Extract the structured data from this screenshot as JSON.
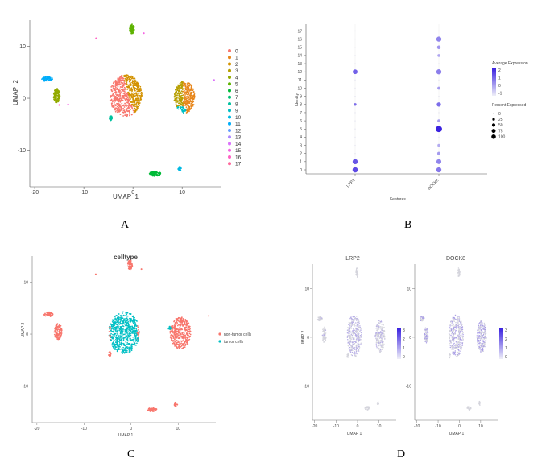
{
  "panels": {
    "A": {
      "letter": "A"
    },
    "B": {
      "letter": "B"
    },
    "C": {
      "letter": "C"
    },
    "D": {
      "letter": "D"
    }
  },
  "chart_data": [
    {
      "panel": "A",
      "type": "scatter",
      "title": "",
      "xlabel": "UMAP_1",
      "ylabel": "UMAP_2",
      "xticks": [
        "-20",
        "-10",
        "0",
        "10"
      ],
      "yticks": [
        "10",
        "0",
        "-10"
      ],
      "xlim": [
        -21,
        18
      ],
      "ylim": [
        -17,
        15
      ],
      "legend_labels": [
        "0",
        "1",
        "2",
        "3",
        "4",
        "5",
        "6",
        "7",
        "8",
        "9",
        "10",
        "11",
        "12",
        "13",
        "14",
        "15",
        "16",
        "17"
      ],
      "legend_colors": [
        "#F8766D",
        "#E7861B",
        "#D39200",
        "#B79F00",
        "#93AA00",
        "#5EB300",
        "#00BA38",
        "#00BF74",
        "#00C19F",
        "#00BFC4",
        "#00B9E3",
        "#00ADFA",
        "#619CFF",
        "#AE87FF",
        "#DB72FB",
        "#F564E3",
        "#FF61C3",
        "#FF699C"
      ],
      "clusters": [
        {
          "cluster": "0",
          "x": -1.8,
          "y": 0.5
        },
        {
          "cluster": "1",
          "x": 10.5,
          "y": 0.2
        },
        {
          "cluster": "2",
          "x": 0.8,
          "y": 1.5
        },
        {
          "cluster": "3",
          "x": -15.5,
          "y": 0.5
        },
        {
          "cluster": "4",
          "x": 10.2,
          "y": -2.5
        },
        {
          "cluster": "5",
          "x": -0.2,
          "y": 13.5
        },
        {
          "cluster": "6",
          "x": 4.5,
          "y": -14.5
        },
        {
          "cluster": "7",
          "x": -1.0,
          "y": -3.0
        },
        {
          "cluster": "8",
          "x": -4.5,
          "y": -4.0
        },
        {
          "cluster": "9",
          "x": 11.0,
          "y": -3.5
        },
        {
          "cluster": "10",
          "x": 9.5,
          "y": -13.5
        },
        {
          "cluster": "11",
          "x": -17.0,
          "y": 4.0
        },
        {
          "cluster": "12",
          "x": -18.5,
          "y": 3.0
        },
        {
          "cluster": "13",
          "x": 16.5,
          "y": 3.5
        },
        {
          "cluster": "14",
          "x": 2.0,
          "y": 12.5
        },
        {
          "cluster": "15",
          "x": -13.5,
          "y": -1.5
        },
        {
          "cluster": "16",
          "x": -7.5,
          "y": 11.5
        },
        {
          "cluster": "17",
          "x": 7.5,
          "y": 2.5
        }
      ]
    },
    {
      "panel": "B",
      "type": "scatter",
      "title": "",
      "xlabel": "Features",
      "ylabel": "Identity",
      "categories": [
        "LRP2",
        "DOCK8"
      ],
      "y_categories": [
        "0",
        "1",
        "2",
        "3",
        "4",
        "5",
        "6",
        "7",
        "8",
        "9",
        "10",
        "11",
        "12",
        "13",
        "14",
        "15",
        "16",
        "17"
      ],
      "legend_expression_title": "Average Expression",
      "legend_expression_ticks": [
        "2",
        "1",
        "0",
        "-1"
      ],
      "legend_percent_title": "Percent Expressed",
      "legend_percent_labels": [
        "0",
        "25",
        "50",
        "75",
        "100"
      ],
      "points": [
        {
          "feature": "LRP2",
          "identity": "0",
          "avg_exp": 1.8,
          "pct": 60
        },
        {
          "feature": "LRP2",
          "identity": "1",
          "avg_exp": 1.6,
          "pct": 55
        },
        {
          "feature": "LRP2",
          "identity": "8",
          "avg_exp": 1.2,
          "pct": 8
        },
        {
          "feature": "LRP2",
          "identity": "12",
          "avg_exp": 1.4,
          "pct": 45
        },
        {
          "feature": "DOCK8",
          "identity": "0",
          "avg_exp": 1.0,
          "pct": 55
        },
        {
          "feature": "DOCK8",
          "identity": "1",
          "avg_exp": 0.8,
          "pct": 50
        },
        {
          "feature": "DOCK8",
          "identity": "2",
          "avg_exp": 0.4,
          "pct": 15
        },
        {
          "feature": "DOCK8",
          "identity": "3",
          "avg_exp": 0.1,
          "pct": 10
        },
        {
          "feature": "DOCK8",
          "identity": "5",
          "avg_exp": 2.5,
          "pct": 95
        },
        {
          "feature": "DOCK8",
          "identity": "6",
          "avg_exp": 0.3,
          "pct": 12
        },
        {
          "feature": "DOCK8",
          "identity": "8",
          "avg_exp": 1.2,
          "pct": 35
        },
        {
          "feature": "DOCK8",
          "identity": "10",
          "avg_exp": 0.4,
          "pct": 12
        },
        {
          "feature": "DOCK8",
          "identity": "12",
          "avg_exp": 0.9,
          "pct": 55
        },
        {
          "feature": "DOCK8",
          "identity": "14",
          "avg_exp": 0.2,
          "pct": 10
        },
        {
          "feature": "DOCK8",
          "identity": "15",
          "avg_exp": 0.5,
          "pct": 20
        },
        {
          "feature": "DOCK8",
          "identity": "16",
          "avg_exp": 0.8,
          "pct": 55
        }
      ]
    },
    {
      "panel": "C",
      "type": "scatter",
      "title": "celltype",
      "xlabel": "UMAP 1",
      "ylabel": "UMAP 2",
      "xticks": [
        "-20",
        "-10",
        "0",
        "10"
      ],
      "yticks": [
        "10",
        "0",
        "-10"
      ],
      "xlim": [
        -21,
        18
      ],
      "ylim": [
        -17,
        15
      ],
      "legend_labels": [
        "non-tumor cells",
        "tumor cells"
      ],
      "legend_colors": [
        "#F8766D",
        "#00BFC4"
      ]
    },
    {
      "panel": "D",
      "type": "scatter",
      "subplots": [
        {
          "title": "LRP2",
          "xlabel": "UMAP 1",
          "ylabel": "UMAP 2",
          "colorbar_ticks": [
            "3",
            "2",
            "1",
            "0"
          ]
        },
        {
          "title": "DOCK8",
          "xlabel": "UMAP 1",
          "ylabel": "",
          "colorbar_ticks": [
            "3",
            "2",
            "1",
            "0"
          ]
        }
      ],
      "xticks": [
        "-20",
        "-10",
        "0",
        "10"
      ],
      "yticks": [
        "10",
        "0",
        "-10"
      ]
    }
  ]
}
